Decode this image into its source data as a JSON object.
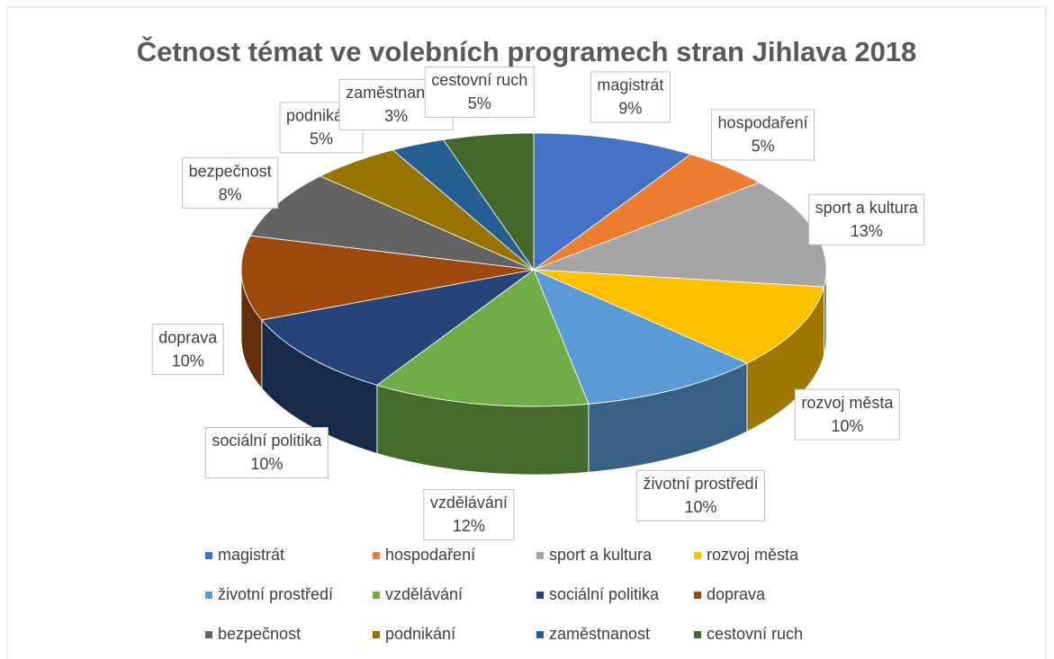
{
  "chart_data": {
    "type": "pie3d",
    "title": "Četnost témat ve volebních programech stran Jihlava 2018",
    "categories": [
      "magistrát",
      "hospodaření",
      "sport a kultura",
      "rozvoj města",
      "životní prostředí",
      "vzdělávání",
      "sociální politika",
      "doprava",
      "bezpečnost",
      "podnikání",
      "zaměstnanost",
      "cestovní ruch"
    ],
    "values": [
      9,
      5,
      13,
      10,
      10,
      12,
      10,
      10,
      8,
      5,
      3,
      5
    ],
    "value_labels": [
      "9%",
      "5%",
      "13%",
      "10%",
      "10%",
      "12%",
      "10%",
      "10%",
      "8%",
      "5%",
      "3%",
      "5%"
    ],
    "colors": [
      "#4472c4",
      "#ed7d31",
      "#a5a5a5",
      "#ffc000",
      "#5b9bd5",
      "#70ad47",
      "#264478",
      "#9e480e",
      "#636363",
      "#997300",
      "#255e91",
      "#43682b"
    ],
    "legend": "bottom"
  }
}
